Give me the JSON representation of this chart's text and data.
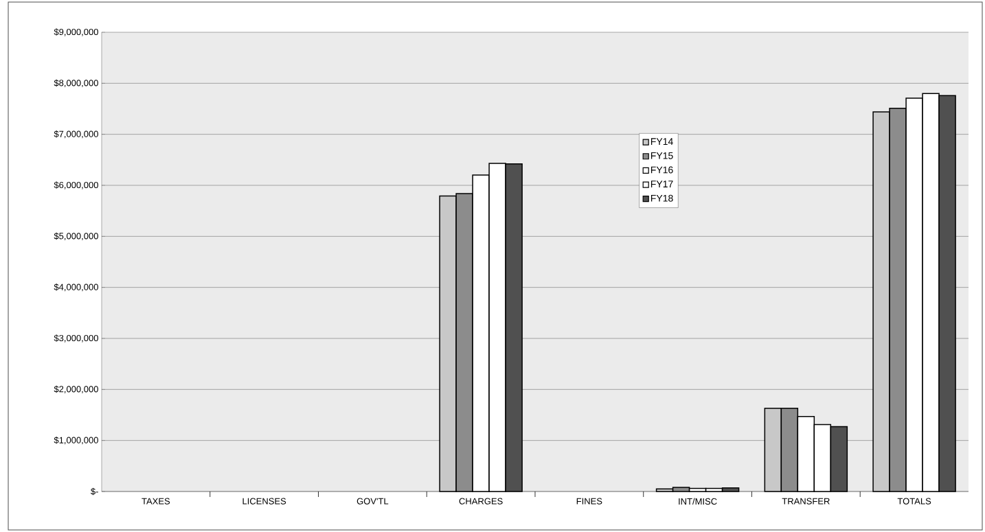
{
  "chart_data": {
    "type": "bar",
    "categories": [
      "TAXES",
      "LICENSES",
      "GOV'TL",
      "CHARGES",
      "FINES",
      "INT/MISC",
      "TRANSFER",
      "TOTALS"
    ],
    "series": [
      {
        "name": "FY14",
        "color": "#c8c8c8",
        "values": [
          null,
          null,
          null,
          5790000,
          null,
          50000,
          1630000,
          7440000
        ]
      },
      {
        "name": "FY15",
        "color": "#8c8c8c",
        "values": [
          null,
          null,
          null,
          5840000,
          null,
          80000,
          1630000,
          7510000
        ]
      },
      {
        "name": "FY16",
        "color": "#ffffff",
        "values": [
          null,
          null,
          null,
          6200000,
          null,
          60000,
          1470000,
          7710000
        ]
      },
      {
        "name": "FY17",
        "color": "#ffffff",
        "values": [
          null,
          null,
          null,
          6430000,
          null,
          60000,
          1310000,
          7800000
        ]
      },
      {
        "name": "FY18",
        "color": "#505050",
        "values": [
          null,
          null,
          null,
          6420000,
          null,
          70000,
          1270000,
          7760000
        ]
      }
    ],
    "ylim": [
      0,
      9000000
    ],
    "yticks": [
      {
        "value": 0,
        "label": "$-"
      },
      {
        "value": 1000000,
        "label": "$1,000,000"
      },
      {
        "value": 2000000,
        "label": "$2,000,000"
      },
      {
        "value": 3000000,
        "label": "$3,000,000"
      },
      {
        "value": 4000000,
        "label": "$4,000,000"
      },
      {
        "value": 5000000,
        "label": "$5,000,000"
      },
      {
        "value": 6000000,
        "label": "$6,000,000"
      },
      {
        "value": 7000000,
        "label": "$7,000,000"
      },
      {
        "value": 8000000,
        "label": "$8,000,000"
      },
      {
        "value": 9000000,
        "label": "$9,000,000"
      }
    ],
    "grid": "y",
    "legend": "top right"
  }
}
